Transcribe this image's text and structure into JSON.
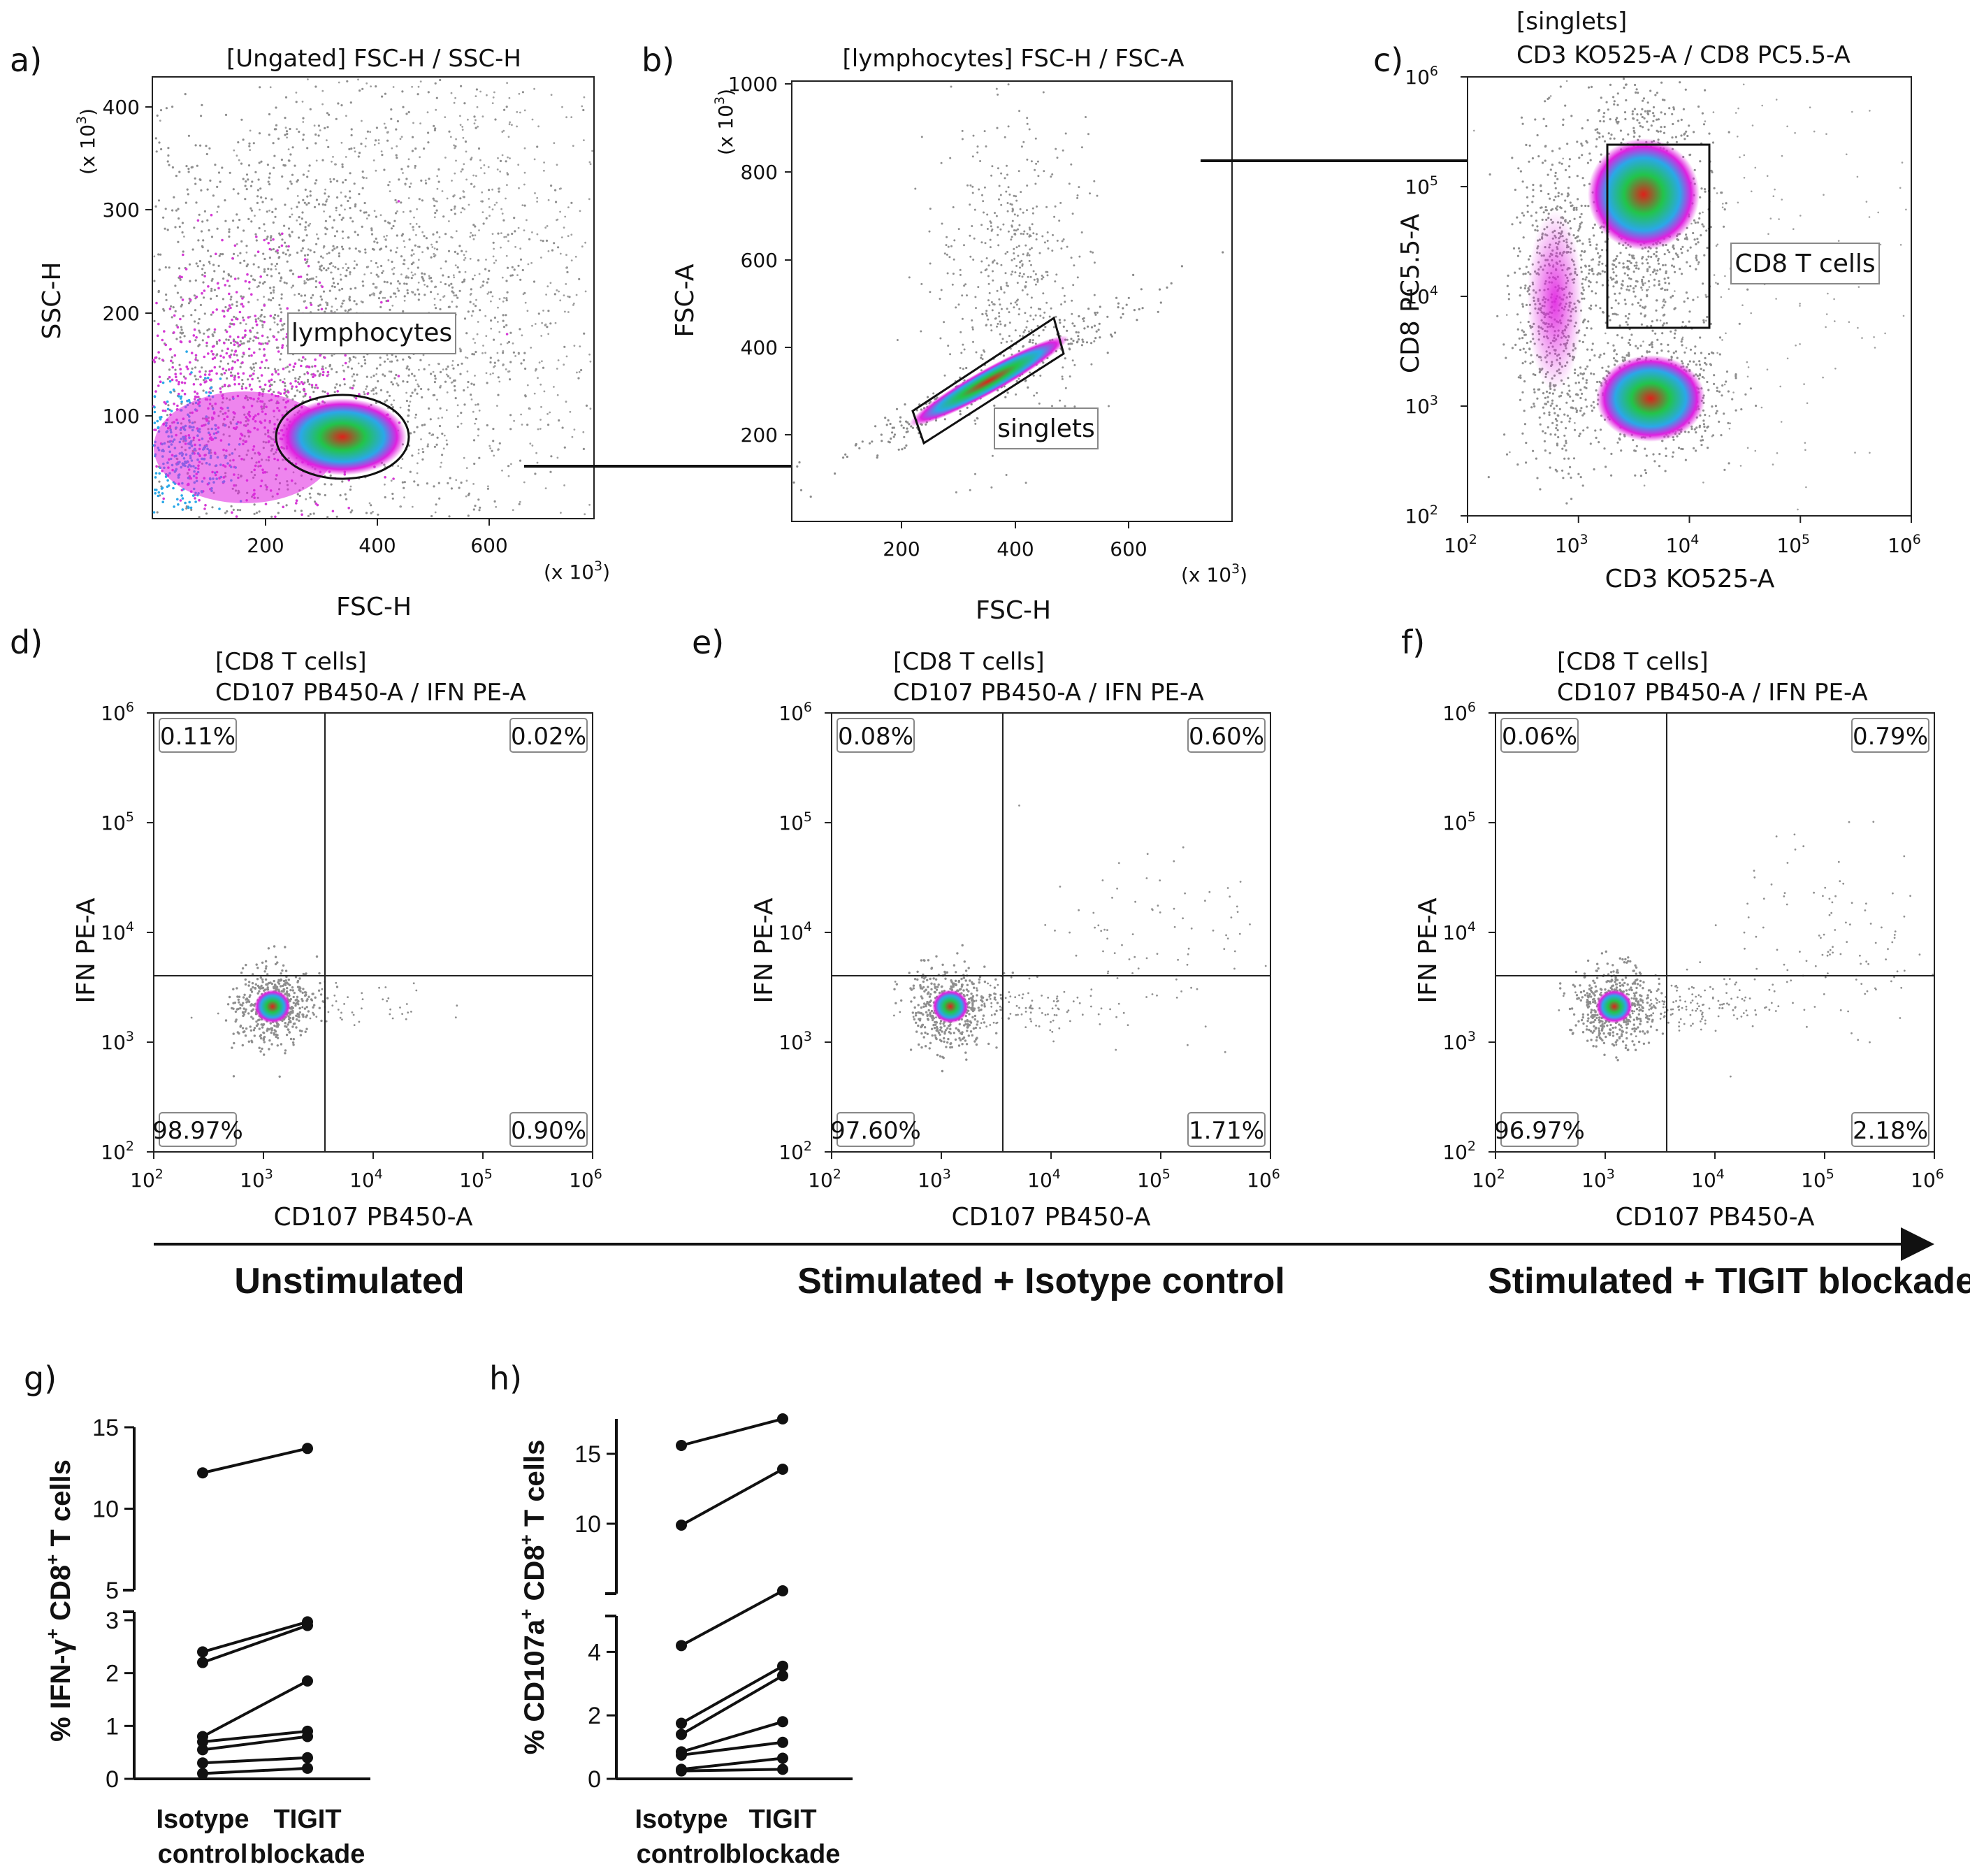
{
  "panel_letters": {
    "a": "a)",
    "b": "b)",
    "c": "c)",
    "d": "d)",
    "e": "e)",
    "f": "f)",
    "g": "g)",
    "h": "h)"
  },
  "flow_plots": {
    "a": {
      "title": "[Ungated] FSC-H / SSC-H",
      "xlabel": "FSC-H",
      "ylabel": "SSC-H",
      "x_ticks": [
        "200",
        "400",
        "600"
      ],
      "y_ticks": [
        "100",
        "200",
        "300",
        "400"
      ],
      "x_scale": "(x 10",
      "y_scale": "(x 10",
      "scale_exp": "3",
      ")": ")",
      "gate_label": "lymphocytes"
    },
    "b": {
      "title": "[lymphocytes] FSC-H / FSC-A",
      "xlabel": "FSC-H",
      "ylabel": "FSC-A",
      "x_ticks": [
        "200",
        "400",
        "600"
      ],
      "y_ticks": [
        "200",
        "400",
        "600",
        "800",
        "1000"
      ],
      "x_scale": "(x 10",
      "y_scale": "(x 10",
      "scale_exp": "3",
      "gate_label": "singlets"
    },
    "c": {
      "title_line1": "[singlets]",
      "title_line2": "CD3 KO525-A / CD8 PC5.5-A",
      "xlabel": "CD3 KO525-A",
      "ylabel": "CD8 PC5.5-A",
      "tick_base": "10",
      "tick_exps": [
        "2",
        "3",
        "4",
        "5",
        "6"
      ],
      "gate_label": "CD8 T cells"
    },
    "quadrant_plots": [
      {
        "id": "d",
        "title_line1": "[CD8 T cells]",
        "title_line2": "CD107 PB450-A / IFN PE-A",
        "xlabel": "CD107 PB450-A",
        "ylabel": "IFN PE-A",
        "q_ul": "0.11%",
        "q_ur": "0.02%",
        "q_ll": "98.97%",
        "q_lr": "0.90%"
      },
      {
        "id": "e",
        "title_line1": "[CD8 T cells]",
        "title_line2": "CD107 PB450-A / IFN PE-A",
        "xlabel": "CD107 PB450-A",
        "ylabel": "IFN PE-A",
        "q_ul": "0.08%",
        "q_ur": "0.60%",
        "q_ll": "97.60%",
        "q_lr": "1.71%"
      },
      {
        "id": "f",
        "title_line1": "[CD8 T cells]",
        "title_line2": "CD107 PB450-A / IFN PE-A",
        "xlabel": "CD107 PB450-A",
        "ylabel": "IFN PE-A",
        "q_ul": "0.06%",
        "q_ur": "0.79%",
        "q_ll": "96.97%",
        "q_lr": "2.18%"
      }
    ]
  },
  "conditions": [
    "Unstimulated",
    "Stimulated + Isotype control",
    "Stimulated + TIGIT blockade"
  ],
  "chart_data": [
    {
      "type": "line",
      "panel": "g",
      "ylabel_parts": [
        "% IFN-γ",
        "+",
        " CD8",
        "+",
        " T cells"
      ],
      "categories": [
        "Isotype control",
        "TIGIT blockade"
      ],
      "category_lines": [
        [
          "Isotype",
          "control"
        ],
        [
          "TIGIT",
          "blockade"
        ]
      ],
      "y_ticks_upper": [
        "5",
        "10",
        "15"
      ],
      "y_ticks_lower": [
        "0",
        "1",
        "2",
        "3"
      ],
      "ylim_lower": [
        0,
        3
      ],
      "ylim_upper": [
        5,
        15
      ],
      "axis_break": true,
      "pairs": [
        [
          12.2,
          13.7
        ],
        [
          2.4,
          3.05
        ],
        [
          2.2,
          2.9
        ],
        [
          0.8,
          1.85
        ],
        [
          0.7,
          0.9
        ],
        [
          0.55,
          0.8
        ],
        [
          0.3,
          0.4
        ],
        [
          0.1,
          0.2
        ]
      ]
    },
    {
      "type": "line",
      "panel": "h",
      "ylabel_parts": [
        "% CD107a",
        "+",
        " CD8",
        "+",
        " T cells"
      ],
      "categories": [
        "Isotype control",
        "TIGIT blockade"
      ],
      "category_lines": [
        [
          "Isotype",
          "control"
        ],
        [
          "TIGIT",
          "blockade"
        ]
      ],
      "y_ticks_upper": [
        "10",
        "15"
      ],
      "y_ticks_lower": [
        "0",
        "2",
        "4"
      ],
      "ylim_lower": [
        0,
        5
      ],
      "ylim_upper": [
        5,
        17.5
      ],
      "axis_break": true,
      "pairs": [
        [
          15.6,
          17.5
        ],
        [
          9.9,
          13.9
        ],
        [
          4.2,
          5.2
        ],
        [
          1.75,
          3.55
        ],
        [
          1.4,
          3.25
        ],
        [
          0.85,
          1.8
        ],
        [
          0.75,
          1.15
        ],
        [
          0.3,
          0.65
        ],
        [
          0.25,
          0.3
        ]
      ]
    }
  ]
}
